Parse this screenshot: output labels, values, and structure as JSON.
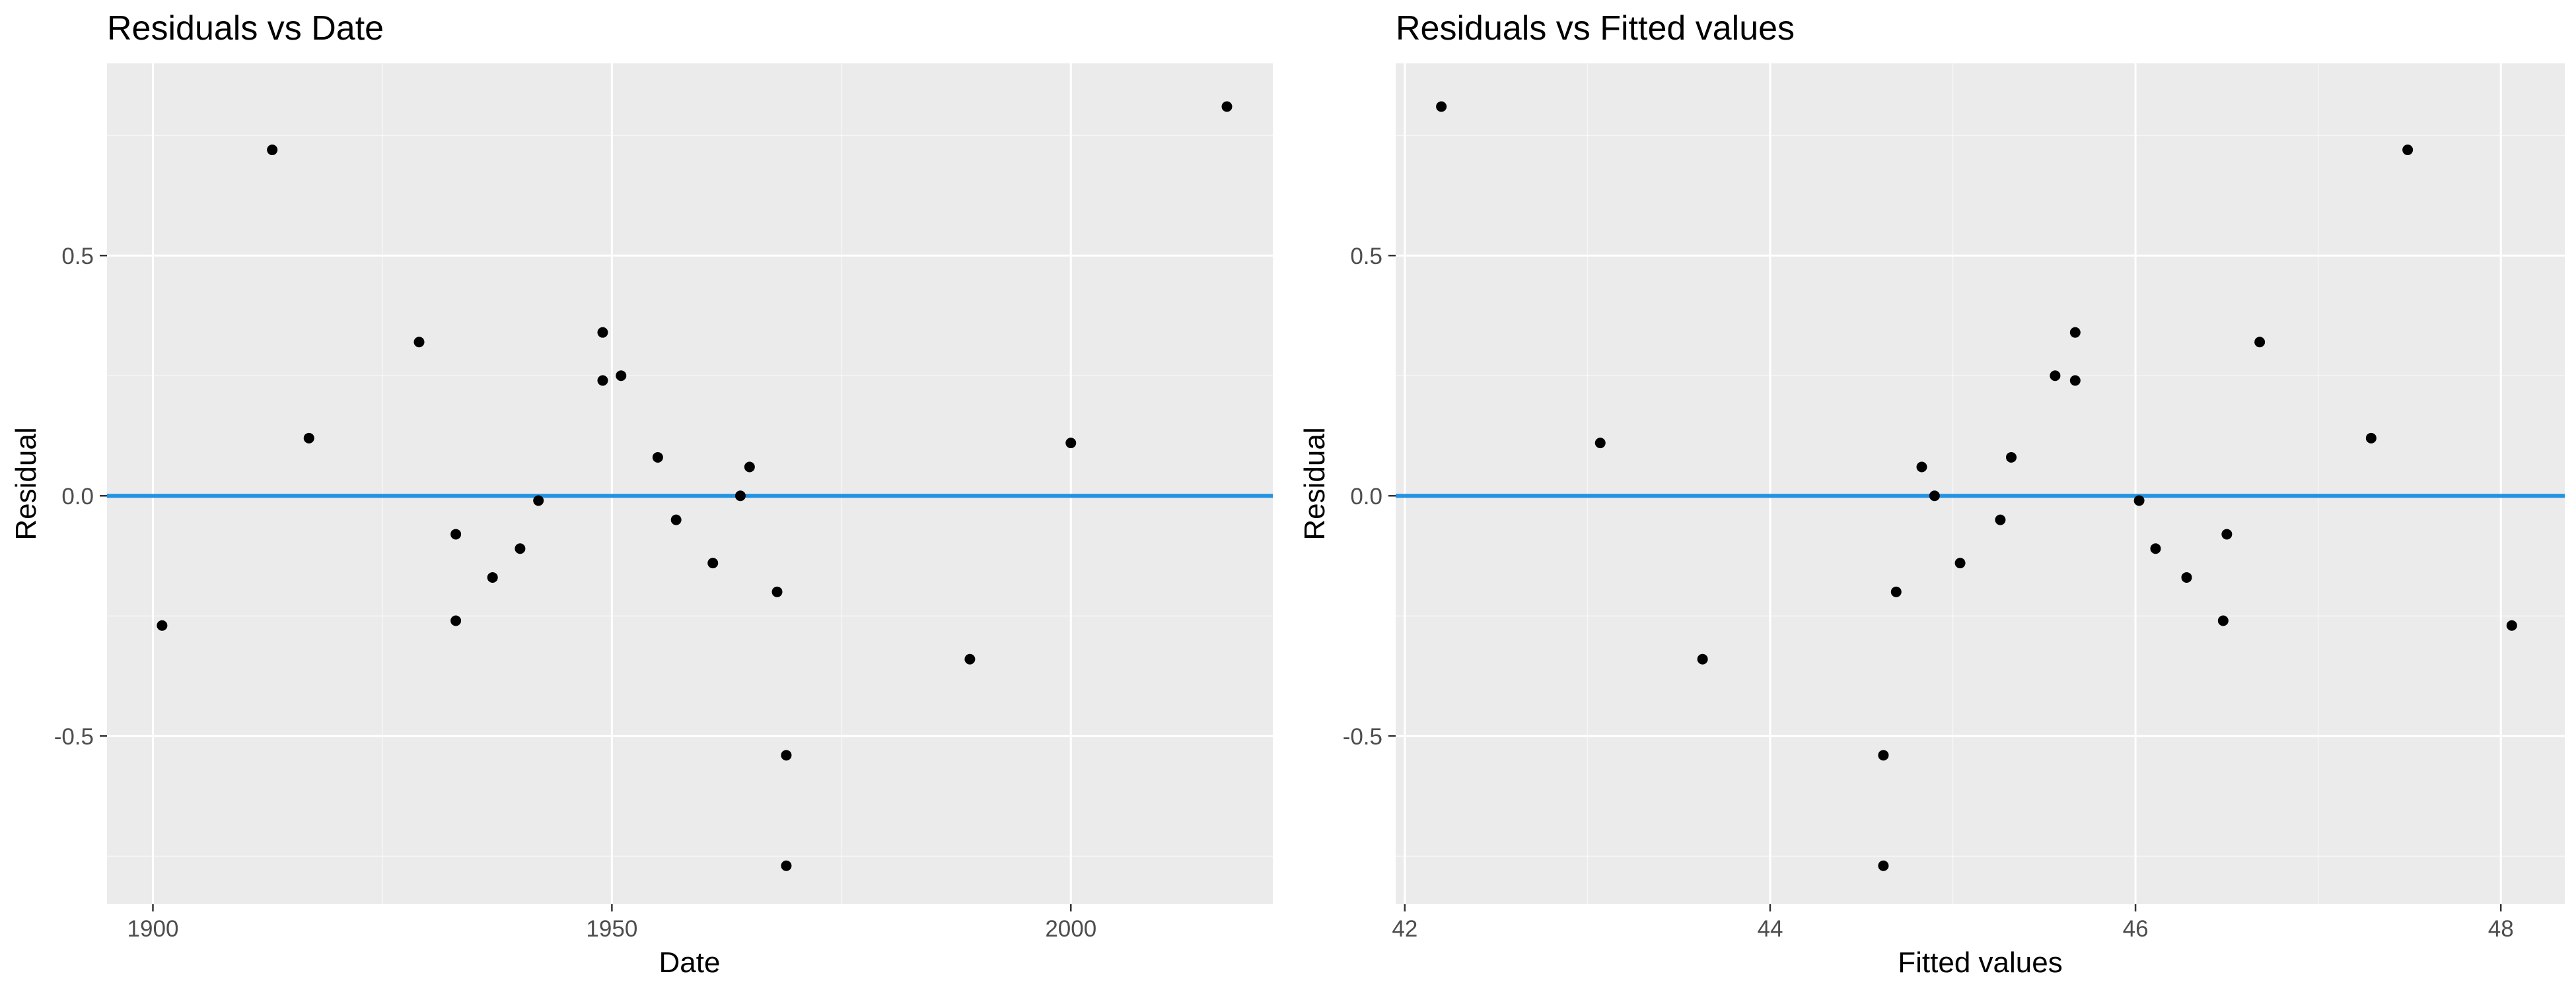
{
  "colors": {
    "panel_bg": "#EBEBEB",
    "grid_major": "#FFFFFF",
    "point": "#000000",
    "hline": "#2392E1",
    "tick_text": "#4D4D4D",
    "title_text": "#000000"
  },
  "chart_data": [
    {
      "type": "scatter",
      "title": "Residuals vs Date",
      "xlabel": "Date",
      "ylabel": "Residual",
      "xlim": [
        1895,
        2022
      ],
      "ylim": [
        -0.85,
        0.9
      ],
      "x_ticks": [
        1900,
        1950,
        2000
      ],
      "x_tick_labels": [
        "1900",
        "1950",
        "2000"
      ],
      "y_ticks": [
        -0.5,
        0.0,
        0.5
      ],
      "y_tick_labels": [
        "-0.5",
        "0.0",
        "0.5"
      ],
      "grid": true,
      "hline": 0,
      "points": [
        {
          "x": 1901,
          "y": -0.27
        },
        {
          "x": 1913,
          "y": 0.72
        },
        {
          "x": 1917,
          "y": 0.12
        },
        {
          "x": 1929,
          "y": 0.32
        },
        {
          "x": 1933,
          "y": -0.08
        },
        {
          "x": 1933,
          "y": -0.26
        },
        {
          "x": 1937,
          "y": -0.17
        },
        {
          "x": 1940,
          "y": -0.11
        },
        {
          "x": 1942,
          "y": -0.01
        },
        {
          "x": 1949,
          "y": 0.34
        },
        {
          "x": 1949,
          "y": 0.24
        },
        {
          "x": 1951,
          "y": 0.25
        },
        {
          "x": 1955,
          "y": 0.08
        },
        {
          "x": 1957,
          "y": -0.05
        },
        {
          "x": 1961,
          "y": -0.14
        },
        {
          "x": 1964,
          "y": 0.0
        },
        {
          "x": 1965,
          "y": 0.06
        },
        {
          "x": 1968,
          "y": -0.2
        },
        {
          "x": 1969,
          "y": -0.54
        },
        {
          "x": 1969,
          "y": -0.77
        },
        {
          "x": 1989,
          "y": -0.34
        },
        {
          "x": 2000,
          "y": 0.11
        },
        {
          "x": 2017,
          "y": 0.81
        }
      ]
    },
    {
      "type": "scatter",
      "title": "Residuals vs Fitted values",
      "xlabel": "Fitted values",
      "ylabel": "Residual",
      "xlim": [
        41.95,
        48.35
      ],
      "ylim": [
        -0.85,
        0.9
      ],
      "x_ticks": [
        42,
        44,
        46,
        48
      ],
      "x_tick_labels": [
        "42",
        "44",
        "46",
        "48"
      ],
      "y_ticks": [
        -0.5,
        0.0,
        0.5
      ],
      "y_tick_labels": [
        "-0.5",
        "0.0",
        "0.5"
      ],
      "grid": true,
      "hline": 0,
      "points": [
        {
          "x": 42.2,
          "y": 0.81
        },
        {
          "x": 43.07,
          "y": 0.11
        },
        {
          "x": 43.63,
          "y": -0.34
        },
        {
          "x": 44.62,
          "y": -0.54
        },
        {
          "x": 44.62,
          "y": -0.77
        },
        {
          "x": 44.69,
          "y": -0.2
        },
        {
          "x": 44.83,
          "y": 0.06
        },
        {
          "x": 44.9,
          "y": 0.0
        },
        {
          "x": 45.04,
          "y": -0.14
        },
        {
          "x": 45.26,
          "y": -0.05
        },
        {
          "x": 45.32,
          "y": 0.08
        },
        {
          "x": 45.56,
          "y": 0.25
        },
        {
          "x": 45.67,
          "y": 0.34
        },
        {
          "x": 45.67,
          "y": 0.24
        },
        {
          "x": 46.02,
          "y": -0.01
        },
        {
          "x": 46.11,
          "y": -0.11
        },
        {
          "x": 46.28,
          "y": -0.17
        },
        {
          "x": 46.48,
          "y": -0.26
        },
        {
          "x": 46.5,
          "y": -0.08
        },
        {
          "x": 46.68,
          "y": 0.32
        },
        {
          "x": 47.29,
          "y": 0.12
        },
        {
          "x": 47.49,
          "y": 0.72
        },
        {
          "x": 48.06,
          "y": -0.27
        }
      ]
    }
  ]
}
